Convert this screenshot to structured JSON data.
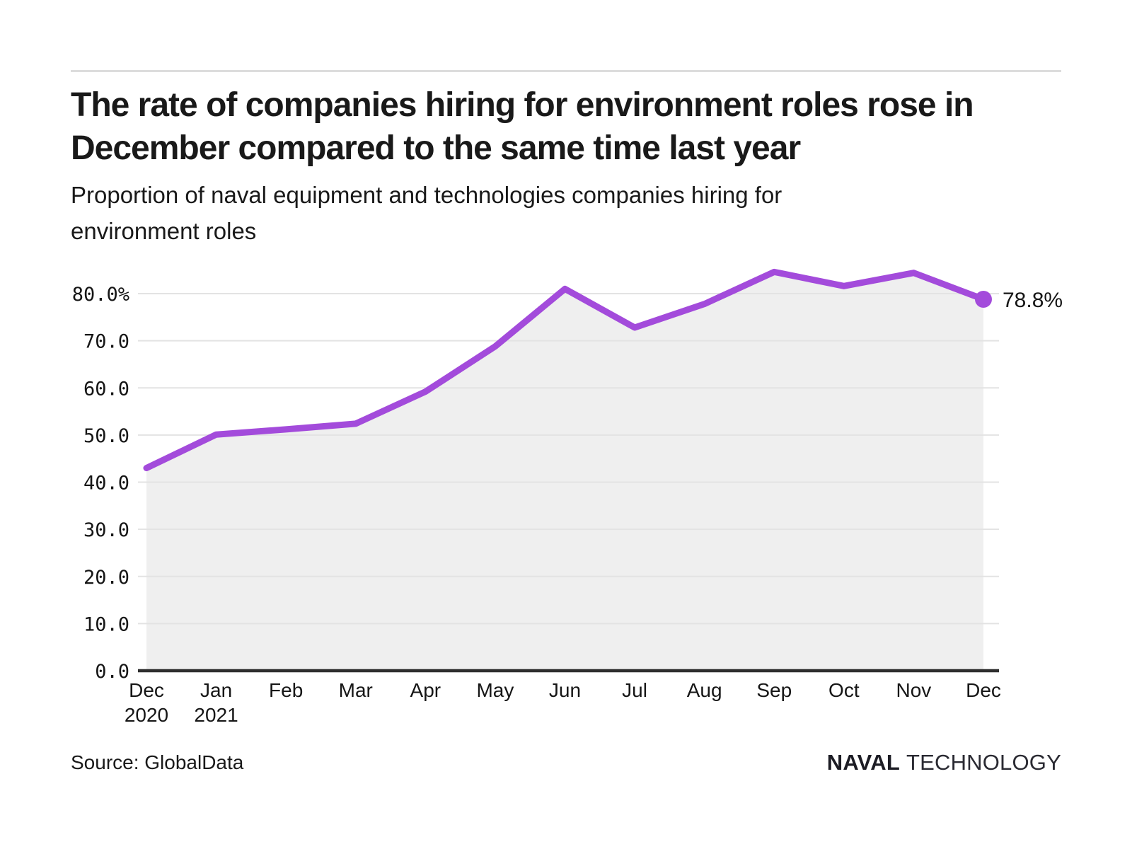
{
  "header": {
    "title": "The rate of companies hiring for environment roles rose in\nDecember compared to the same time last year",
    "subtitle": "Proportion of naval equipment and technologies companies hiring for\nenvironment roles"
  },
  "chart_data": {
    "type": "area",
    "title": "Proportion of naval equipment and technologies companies hiring for environment roles",
    "xlabel": "",
    "ylabel": "",
    "categories": [
      {
        "label": "Dec",
        "year": "2020"
      },
      {
        "label": "Jan",
        "year": "2021"
      },
      {
        "label": "Feb",
        "year": ""
      },
      {
        "label": "Mar",
        "year": ""
      },
      {
        "label": "Apr",
        "year": ""
      },
      {
        "label": "May",
        "year": ""
      },
      {
        "label": "Jun",
        "year": ""
      },
      {
        "label": "Jul",
        "year": ""
      },
      {
        "label": "Aug",
        "year": ""
      },
      {
        "label": "Sep",
        "year": ""
      },
      {
        "label": "Oct",
        "year": ""
      },
      {
        "label": "Nov",
        "year": ""
      },
      {
        "label": "Dec",
        "year": ""
      }
    ],
    "values": [
      43.0,
      50.1,
      51.2,
      52.4,
      59.2,
      68.8,
      81.0,
      72.8,
      77.8,
      84.6,
      81.6,
      84.4,
      78.8
    ],
    "end_label": "78.8%",
    "y_ticks": [
      {
        "v": 80,
        "label": "80.0%"
      },
      {
        "v": 70,
        "label": "70.0"
      },
      {
        "v": 60,
        "label": "60.0"
      },
      {
        "v": 50,
        "label": "50.0"
      },
      {
        "v": 40,
        "label": "40.0"
      },
      {
        "v": 30,
        "label": "30.0"
      },
      {
        "v": 20,
        "label": "20.0"
      },
      {
        "v": 10,
        "label": "10.0"
      },
      {
        "v": 0,
        "label": "0.0"
      }
    ],
    "ylim": [
      0,
      89.7
    ],
    "grid": true,
    "legend": "none",
    "colors": {
      "line": "#a34bdb",
      "point": "#a34bdb",
      "fill": "#efefef",
      "grid": "#e3e3e3",
      "axis": "#2e2e2e",
      "tick_text": "#161616"
    }
  },
  "footer": {
    "source": "Source: GlobalData",
    "logo_bold": "NAVAL",
    "logo_light": "TECHNOLOGY"
  }
}
